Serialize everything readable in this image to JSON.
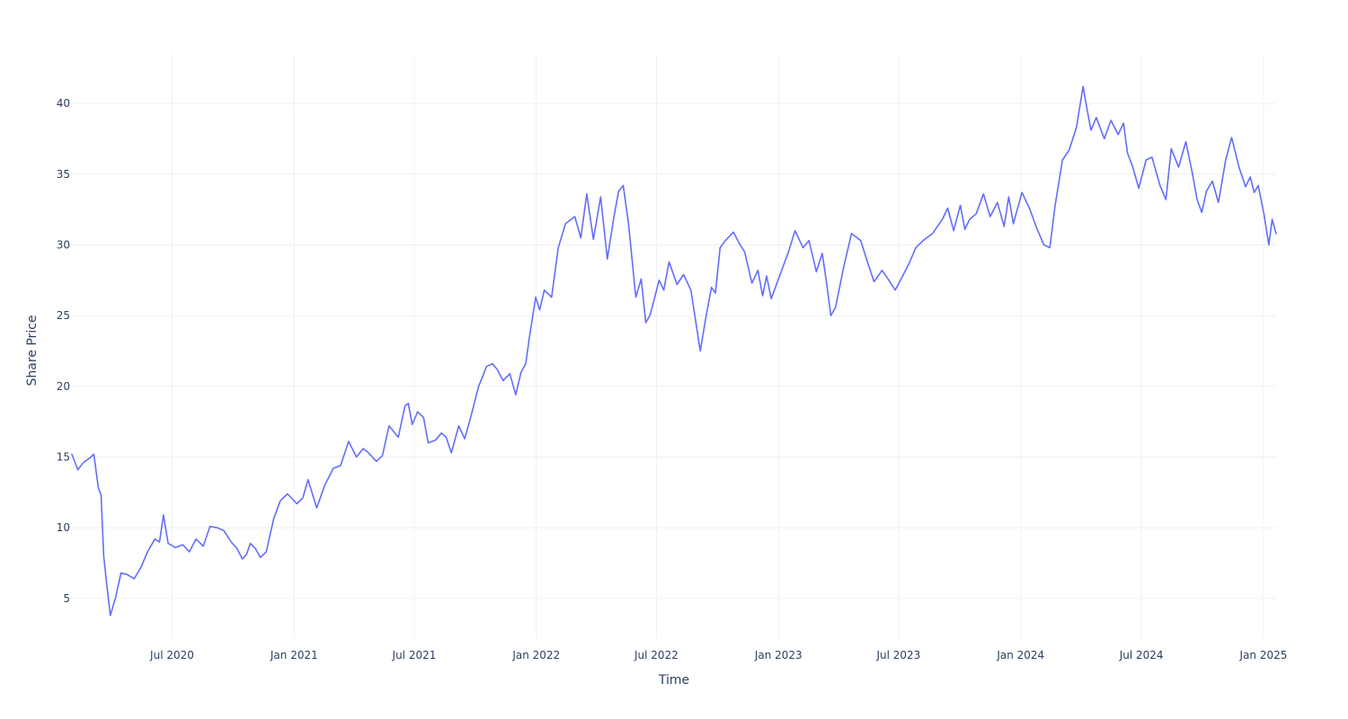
{
  "chart_data": {
    "type": "line",
    "title": "",
    "xlabel": "Time",
    "ylabel": "Share Price",
    "xlim": [
      "2020-02-01",
      "2025-01-20"
    ],
    "ylim": [
      2.2,
      43.5
    ],
    "grid": true,
    "legend": "none",
    "colors": {
      "line": "#636efa",
      "grid": "#eef0f4",
      "text": "#2a3f5f"
    },
    "x_ticks": [
      {
        "date": "2020-07-01",
        "label": "Jul 2020"
      },
      {
        "date": "2021-01-01",
        "label": "Jan 2021"
      },
      {
        "date": "2021-07-01",
        "label": "Jul 2021"
      },
      {
        "date": "2022-01-01",
        "label": "Jan 2022"
      },
      {
        "date": "2022-07-01",
        "label": "Jul 2022"
      },
      {
        "date": "2023-01-01",
        "label": "Jan 2023"
      },
      {
        "date": "2023-07-01",
        "label": "Jul 2023"
      },
      {
        "date": "2024-01-01",
        "label": "Jan 2024"
      },
      {
        "date": "2024-07-01",
        "label": "Jul 2024"
      },
      {
        "date": "2025-01-01",
        "label": "Jan 2025"
      }
    ],
    "y_ticks": [
      5,
      10,
      15,
      20,
      25,
      30,
      35,
      40
    ],
    "series": [
      {
        "x": [
          "2020-02-01",
          "2020-02-10",
          "2020-02-18",
          "2020-02-27",
          "2020-03-05",
          "2020-03-12",
          "2020-03-16",
          "2020-03-20",
          "2020-03-24",
          "2020-03-30",
          "2020-04-07",
          "2020-04-15",
          "2020-04-24",
          "2020-05-05",
          "2020-05-15",
          "2020-05-25",
          "2020-06-05",
          "2020-06-12",
          "2020-06-18",
          "2020-06-25",
          "2020-07-06",
          "2020-07-17",
          "2020-07-27",
          "2020-08-06",
          "2020-08-17",
          "2020-08-27",
          "2020-09-07",
          "2020-09-17",
          "2020-09-28",
          "2020-10-06",
          "2020-10-15",
          "2020-10-21",
          "2020-10-27",
          "2020-11-04",
          "2020-11-11",
          "2020-11-20",
          "2020-12-01",
          "2020-12-11",
          "2020-12-22",
          "2021-01-05",
          "2021-01-14",
          "2021-01-22",
          "2021-02-04",
          "2021-02-16",
          "2021-03-01",
          "2021-03-12",
          "2021-03-24",
          "2021-04-05",
          "2021-04-15",
          "2021-04-23",
          "2021-05-05",
          "2021-05-14",
          "2021-05-24",
          "2021-06-07",
          "2021-06-17",
          "2021-06-22",
          "2021-06-28",
          "2021-07-06",
          "2021-07-15",
          "2021-07-22",
          "2021-08-02",
          "2021-08-11",
          "2021-08-18",
          "2021-08-26",
          "2021-09-06",
          "2021-09-15",
          "2021-09-24",
          "2021-10-06",
          "2021-10-18",
          "2021-10-27",
          "2021-11-03",
          "2021-11-12",
          "2021-11-22",
          "2021-12-01",
          "2021-12-09",
          "2021-12-16",
          "2021-12-22",
          "2021-12-31",
          "2022-01-06",
          "2022-01-13",
          "2022-01-24",
          "2022-02-03",
          "2022-02-14",
          "2022-02-28",
          "2022-03-09",
          "2022-03-18",
          "2022-03-28",
          "2022-04-08",
          "2022-04-18",
          "2022-04-28",
          "2022-05-05",
          "2022-05-12",
          "2022-05-20",
          "2022-05-31",
          "2022-06-08",
          "2022-06-15",
          "2022-06-21",
          "2022-06-28",
          "2022-07-05",
          "2022-07-12",
          "2022-07-20",
          "2022-08-01",
          "2022-08-11",
          "2022-08-22",
          "2022-09-05",
          "2022-09-14",
          "2022-09-22",
          "2022-09-28",
          "2022-10-05",
          "2022-10-13",
          "2022-10-25",
          "2022-11-03",
          "2022-11-11",
          "2022-11-22",
          "2022-12-01",
          "2022-12-08",
          "2022-12-14",
          "2022-12-21",
          "2023-01-05",
          "2023-01-16",
          "2023-01-26",
          "2023-02-07",
          "2023-02-16",
          "2023-02-27",
          "2023-03-08",
          "2023-03-15",
          "2023-03-21",
          "2023-03-28",
          "2023-04-10",
          "2023-04-21",
          "2023-05-05",
          "2023-05-15",
          "2023-05-25",
          "2023-06-06",
          "2023-06-15",
          "2023-06-26",
          "2023-07-06",
          "2023-07-17",
          "2023-07-27",
          "2023-08-07",
          "2023-08-21",
          "2023-09-05",
          "2023-09-13",
          "2023-09-22",
          "2023-10-02",
          "2023-10-09",
          "2023-10-16",
          "2023-10-26",
          "2023-11-06",
          "2023-11-16",
          "2023-11-27",
          "2023-12-07",
          "2023-12-14",
          "2023-12-21",
          "2024-01-03",
          "2024-01-15",
          "2024-01-25",
          "2024-02-05",
          "2024-02-14",
          "2024-02-22",
          "2024-03-04",
          "2024-03-14",
          "2024-03-25",
          "2024-04-04",
          "2024-04-10",
          "2024-04-16",
          "2024-04-24",
          "2024-05-06",
          "2024-05-16",
          "2024-05-27",
          "2024-06-04",
          "2024-06-10",
          "2024-06-18",
          "2024-06-27",
          "2024-07-08",
          "2024-07-17",
          "2024-07-29",
          "2024-08-07",
          "2024-08-15",
          "2024-08-26",
          "2024-09-06",
          "2024-09-16",
          "2024-09-23",
          "2024-09-30",
          "2024-10-07",
          "2024-10-16",
          "2024-10-25",
          "2024-11-05",
          "2024-11-14",
          "2024-11-25",
          "2024-12-05",
          "2024-12-12",
          "2024-12-18",
          "2024-12-24",
          "2025-01-02",
          "2025-01-09",
          "2025-01-14",
          "2025-01-20"
        ],
        "values": [
          15.2,
          14.1,
          14.6,
          14.9,
          15.2,
          12.8,
          12.3,
          8.0,
          6.2,
          3.8,
          5.1,
          6.8,
          6.7,
          6.4,
          7.2,
          8.3,
          9.2,
          9.0,
          10.9,
          8.9,
          8.6,
          8.8,
          8.3,
          9.2,
          8.7,
          10.1,
          10.0,
          9.8,
          9.0,
          8.6,
          7.8,
          8.1,
          8.9,
          8.5,
          7.9,
          8.3,
          10.6,
          11.9,
          12.4,
          11.7,
          12.1,
          13.4,
          11.4,
          13.0,
          14.2,
          14.4,
          16.1,
          15.0,
          15.6,
          15.3,
          14.7,
          15.1,
          17.2,
          16.4,
          18.6,
          18.8,
          17.3,
          18.2,
          17.8,
          16.0,
          16.2,
          16.7,
          16.4,
          15.3,
          17.2,
          16.3,
          17.8,
          20.0,
          21.4,
          21.6,
          21.2,
          20.4,
          20.9,
          19.4,
          21.0,
          21.6,
          23.6,
          26.3,
          25.4,
          26.8,
          26.3,
          29.8,
          31.5,
          32.0,
          30.5,
          33.6,
          30.4,
          33.4,
          29.0,
          32.0,
          33.8,
          34.2,
          31.5,
          26.3,
          27.6,
          24.5,
          25.0,
          26.2,
          27.5,
          26.8,
          28.8,
          27.2,
          27.9,
          26.8,
          22.5,
          25.0,
          27.0,
          26.6,
          29.8,
          30.3,
          30.9,
          30.1,
          29.5,
          27.3,
          28.2,
          26.4,
          27.8,
          26.2,
          28.1,
          29.5,
          31.0,
          29.8,
          30.3,
          28.1,
          29.4,
          27.1,
          25.0,
          25.6,
          28.6,
          30.8,
          30.3,
          28.8,
          27.4,
          28.2,
          27.6,
          26.8,
          27.7,
          28.7,
          29.8,
          30.3,
          30.8,
          31.8,
          32.6,
          31.0,
          32.8,
          31.1,
          31.8,
          32.2,
          33.6,
          32.0,
          33.0,
          31.3,
          33.4,
          31.5,
          33.7,
          32.5,
          31.2,
          30.0,
          29.8,
          32.8,
          36.0,
          36.7,
          38.3,
          41.2,
          39.6,
          38.1,
          39.0,
          37.5,
          38.8,
          37.8,
          38.6,
          36.5,
          35.5,
          34.0,
          36.0,
          36.2,
          34.2,
          33.2,
          36.8,
          35.5,
          37.3,
          35.0,
          33.2,
          32.3,
          33.8,
          34.5,
          33.0,
          36.0,
          37.6,
          35.5,
          34.1,
          34.8,
          33.7,
          34.2,
          32.1,
          30.0,
          31.8,
          30.8
        ]
      }
    ]
  }
}
